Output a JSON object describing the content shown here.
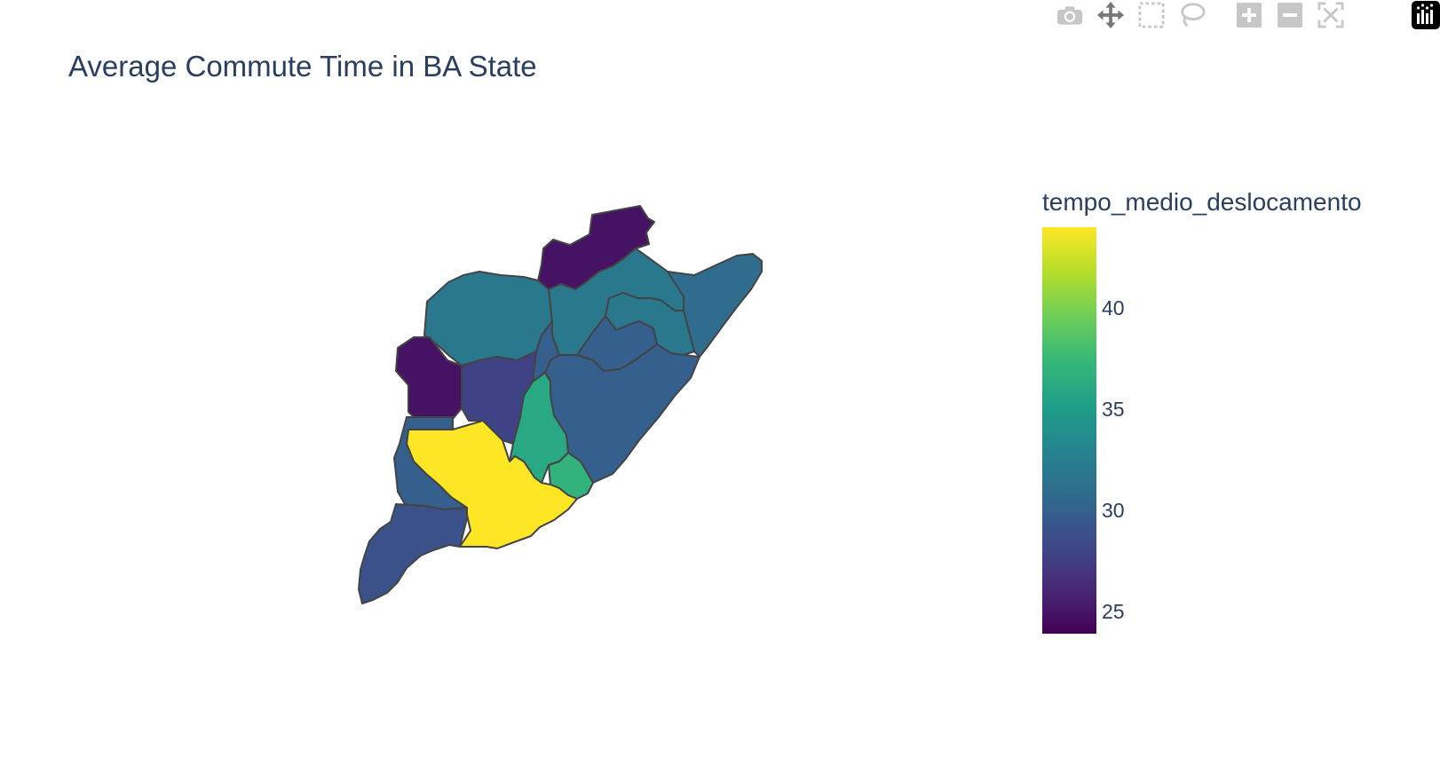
{
  "title": "Average Commute Time in BA State",
  "modebar": {
    "buttons": [
      "camera-icon",
      "pan-icon",
      "box-select-icon",
      "lasso-select-icon",
      "zoom-in-icon",
      "zoom-out-icon",
      "autoscale-icon"
    ],
    "logo": "plotly-logo-icon"
  },
  "colorbar": {
    "title": "tempo_medio_deslocamento",
    "colorscale": "Viridis",
    "range": [
      24,
      44
    ],
    "ticks": [
      "40",
      "35",
      "30",
      "25"
    ],
    "tick_values": [
      40,
      35,
      30,
      25
    ]
  },
  "chart_data": {
    "type": "choropleth",
    "title": "Average Commute Time in BA State",
    "colorscale": "Viridis",
    "color_range": [
      24,
      44
    ],
    "colorbar_title": "tempo_medio_deslocamento",
    "region_values": [
      25,
      32,
      32,
      31,
      32,
      30,
      30,
      30,
      25,
      28,
      36,
      37,
      44,
      30,
      29
    ],
    "border_color": "#444444"
  }
}
